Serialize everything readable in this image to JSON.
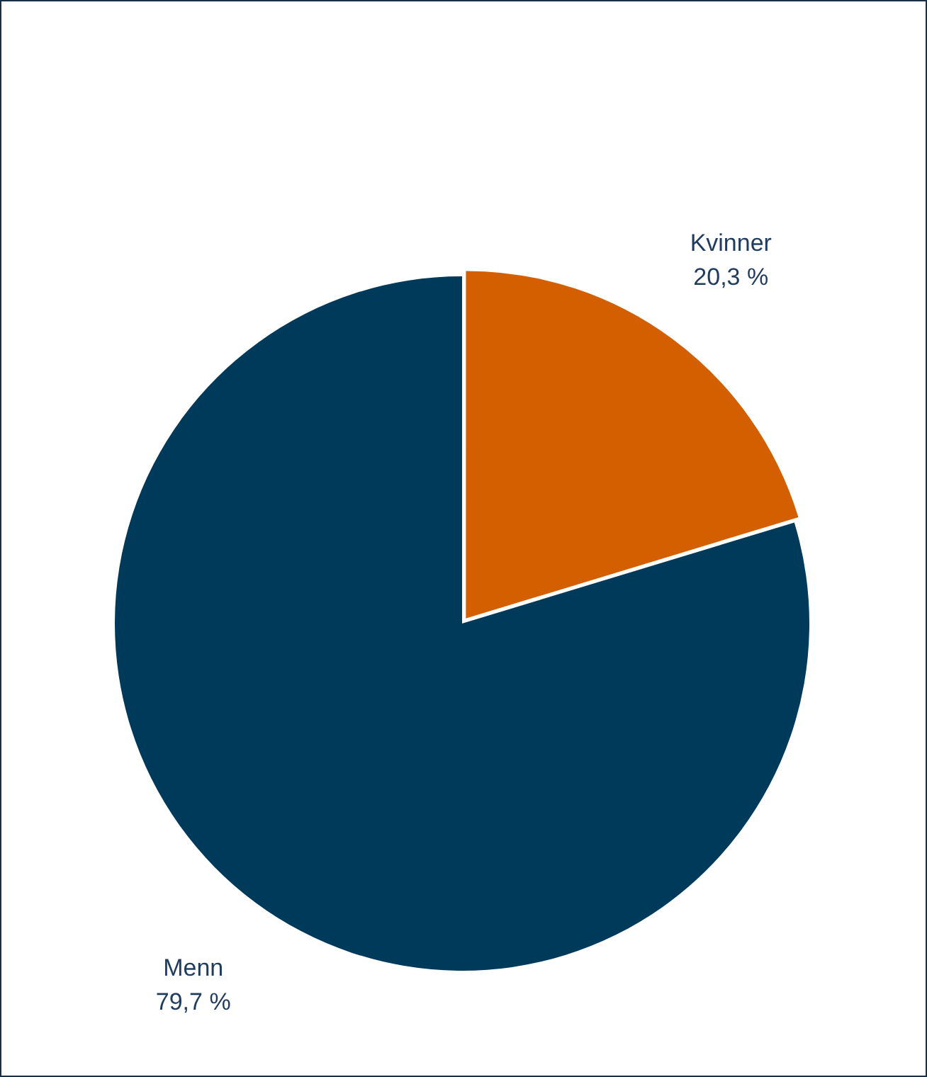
{
  "chart_data": {
    "type": "pie",
    "categories": [
      "Kvinner",
      "Menn"
    ],
    "values": [
      20.3,
      79.7
    ],
    "colors": [
      "#d45f00",
      "#003a5b"
    ],
    "value_labels": [
      "20,3 %",
      "79,7 %"
    ],
    "legend": false
  }
}
